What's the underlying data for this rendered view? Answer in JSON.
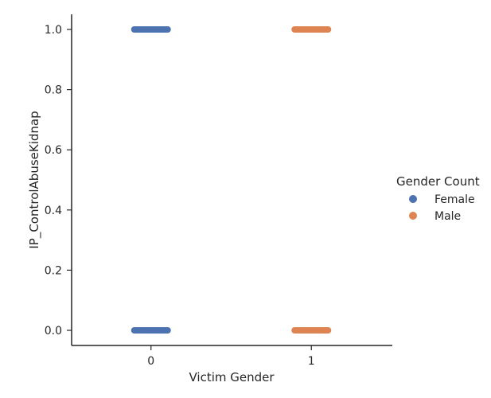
{
  "chart_data": {
    "type": "scatter",
    "subtype": "strip",
    "title": "",
    "xlabel": "Victim Gender",
    "ylabel": "IP_ControlAbuseKidnap",
    "categories": [
      "0",
      "1"
    ],
    "ylim": [
      -0.05,
      1.05
    ],
    "yticks": [
      "0.0",
      "0.2",
      "0.4",
      "0.6",
      "0.8",
      "1.0"
    ],
    "grid": false,
    "legend": {
      "title": "Gender Count",
      "placement": "right"
    },
    "series": [
      {
        "name": "Female",
        "color": "#4c72b0",
        "category": "0",
        "values": [
          0,
          1
        ]
      },
      {
        "name": "Male",
        "color": "#dd8452",
        "category": "1",
        "values": [
          0,
          1
        ]
      }
    ]
  }
}
